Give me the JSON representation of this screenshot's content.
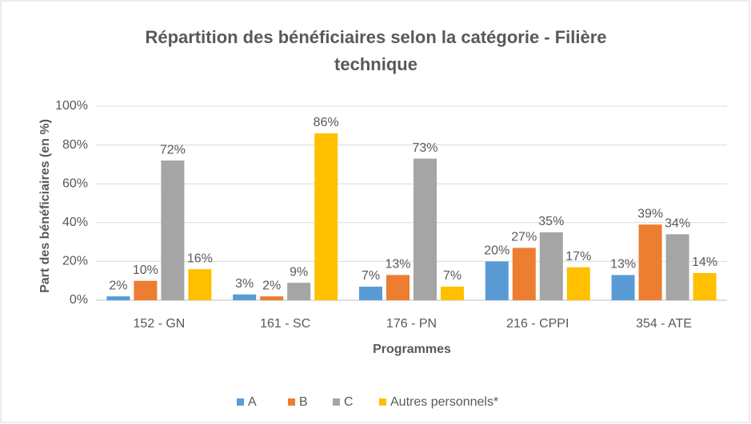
{
  "chart_data": {
    "type": "bar",
    "title": "Répartition des bénéficiaires selon la catégorie - Filière technique",
    "x_label": "Programmes",
    "y_label": "Part des bénéficiaires (en %)",
    "categories": [
      "152 - GN",
      "161 - SC",
      "176 - PN",
      "216 - CPPI",
      "354 - ATE"
    ],
    "series": [
      {
        "name": "A",
        "color": "#5b9bd5",
        "values": [
          2,
          3,
          7,
          20,
          13
        ],
        "value_labels": [
          "2%",
          "3%",
          "7%",
          "20%",
          "13%"
        ]
      },
      {
        "name": "B",
        "color": "#ed7d31",
        "values": [
          10,
          2,
          13,
          27,
          39
        ],
        "value_labels": [
          "10%",
          "2%",
          "13%",
          "27%",
          "39%"
        ]
      },
      {
        "name": "C",
        "color": "#a5a5a5",
        "values": [
          72,
          9,
          73,
          35,
          34
        ],
        "value_labels": [
          "72%",
          "9%",
          "73%",
          "35%",
          "34%"
        ]
      },
      {
        "name": "Autres personnels*",
        "color": "#ffc000",
        "values": [
          16,
          86,
          7,
          17,
          14
        ],
        "value_labels": [
          "16%",
          "86%",
          "7%",
          "17%",
          "14%"
        ]
      }
    ],
    "ylim": [
      0,
      100
    ],
    "yticks": [
      {
        "value": 0,
        "label": "0%"
      },
      {
        "value": 20,
        "label": "20%"
      },
      {
        "value": 40,
        "label": "40%"
      },
      {
        "value": 60,
        "label": "60%"
      },
      {
        "value": 80,
        "label": "80%"
      },
      {
        "value": 100,
        "label": "100%"
      }
    ],
    "grid": true,
    "legend": "bottom"
  }
}
